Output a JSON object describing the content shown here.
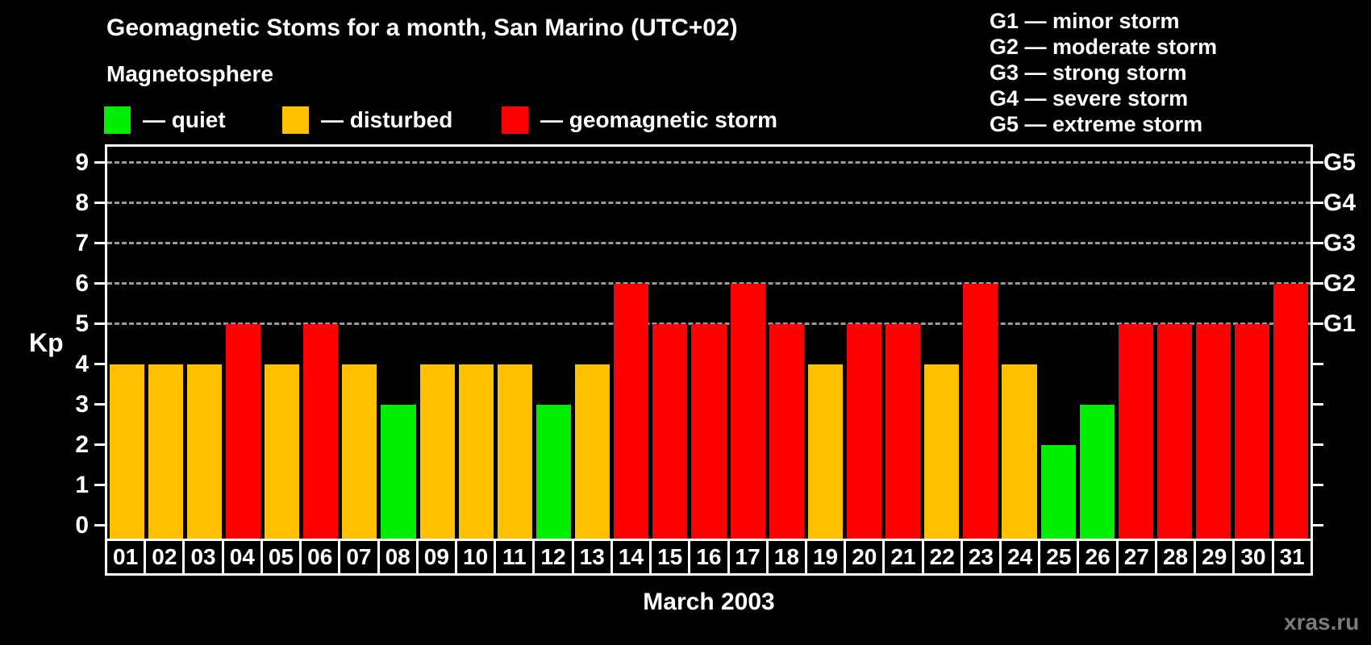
{
  "header": {
    "title": "Geomagnetic Stoms for a month, San Marino (UTC+02)",
    "subtitle": "Magnetosphere"
  },
  "legend": {
    "items": [
      {
        "key": "quiet",
        "label": "— quiet"
      },
      {
        "key": "disturbed",
        "label": "— disturbed"
      },
      {
        "key": "storm",
        "label": "— geomagnetic storm"
      }
    ]
  },
  "g_legend": [
    "G1 — minor storm",
    "G2 — moderate storm",
    "G3 — strong storm",
    "G4 — severe storm",
    "G5 — extreme storm"
  ],
  "colors": {
    "quiet": "#00EE00",
    "disturbed": "#FFC000",
    "storm": "#FF0000",
    "grid": "#9a9a9a",
    "axis": "#ffffff",
    "watermark": "#7b7b7b"
  },
  "page": {
    "watermark": "xras.ru"
  },
  "chart_data": {
    "type": "bar",
    "title": "Geomagnetic Stoms for a month, San Marino (UTC+02)",
    "xlabel": "March 2003",
    "ylabel": "Kp",
    "ylim": [
      0,
      9
    ],
    "yticks": [
      0,
      1,
      2,
      3,
      4,
      5,
      6,
      7,
      8,
      9
    ],
    "gridlines_at": [
      5,
      6,
      7,
      8,
      9
    ],
    "grid": "dashed, only at Kp 5-9",
    "legend_position": "top",
    "right_axis": [
      {
        "kp": 5,
        "label": "G1"
      },
      {
        "kp": 6,
        "label": "G2"
      },
      {
        "kp": 7,
        "label": "G3"
      },
      {
        "kp": 8,
        "label": "G4"
      },
      {
        "kp": 9,
        "label": "G5"
      }
    ],
    "categories": [
      "01",
      "02",
      "03",
      "04",
      "05",
      "06",
      "07",
      "08",
      "09",
      "10",
      "11",
      "12",
      "13",
      "14",
      "15",
      "16",
      "17",
      "18",
      "19",
      "20",
      "21",
      "22",
      "23",
      "24",
      "25",
      "26",
      "27",
      "28",
      "29",
      "30",
      "31"
    ],
    "values": [
      4,
      4,
      4,
      5,
      4,
      5,
      4,
      3,
      4,
      4,
      4,
      3,
      4,
      6,
      5,
      5,
      6,
      5,
      4,
      5,
      5,
      4,
      6,
      4,
      2,
      3,
      5,
      5,
      5,
      5,
      6
    ],
    "statuses": [
      "disturbed",
      "disturbed",
      "disturbed",
      "storm",
      "disturbed",
      "storm",
      "disturbed",
      "quiet",
      "disturbed",
      "disturbed",
      "disturbed",
      "quiet",
      "disturbed",
      "storm",
      "storm",
      "storm",
      "storm",
      "storm",
      "disturbed",
      "storm",
      "storm",
      "disturbed",
      "storm",
      "disturbed",
      "quiet",
      "quiet",
      "storm",
      "storm",
      "storm",
      "storm",
      "storm"
    ]
  }
}
